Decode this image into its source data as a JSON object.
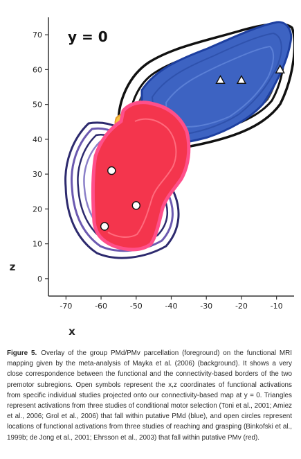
{
  "chart_data": {
    "type": "scatter",
    "annotation": "y = 0",
    "xlabel": "x",
    "ylabel": "z",
    "xlim": [
      -75,
      -5
    ],
    "ylim": [
      -5,
      75
    ],
    "x_ticks": [
      "-70",
      "-60",
      "-50",
      "-40",
      "-30",
      "-20",
      "-10"
    ],
    "y_ticks": [
      "0",
      "10",
      "20",
      "30",
      "40",
      "50",
      "60",
      "70"
    ],
    "series": [
      {
        "marker": "triangle",
        "region_color": "#3d63c2",
        "points": [
          {
            "x": -26,
            "z": 57
          },
          {
            "x": -20,
            "z": 57
          },
          {
            "x": -9,
            "z": 60
          }
        ]
      },
      {
        "marker": "circle",
        "region_color": "#f4354d",
        "points": [
          {
            "x": -57,
            "z": 31
          },
          {
            "x": -50,
            "z": 21
          },
          {
            "x": -59,
            "z": 15
          }
        ]
      }
    ],
    "colors": {
      "pmd": "#3d63c2",
      "pmv": "#f4354d",
      "pmv_edge": "#ff4f8a",
      "contour_dark": "#2d2a6e"
    }
  },
  "caption": {
    "label": "Figure 5.",
    "text": "Overlay of the group PMd/PMv parcellation (foreground) on the functional MRI mapping given by the meta-analysis of Mayka et al. (2006) (background). It shows a very close correspondence between the functional and the connectivity-based borders of the two premotor subregions. Open symbols represent the x,z coordinates of functional activations from specific individual studies projected onto our connectivity-based map at y = 0. Triangles represent activations from three studies of conditional motor selection (Toni et al., 2001; Amiez et al., 2006; Grol et al., 2006) that fall within putative PMd (blue), and open circles represent locations of functional activations from three studies of reaching and grasping (Binkofski et al., 1999b; de Jong et al., 2001; Ehrsson et al., 2003) that fall within putative PMv (red)."
  }
}
